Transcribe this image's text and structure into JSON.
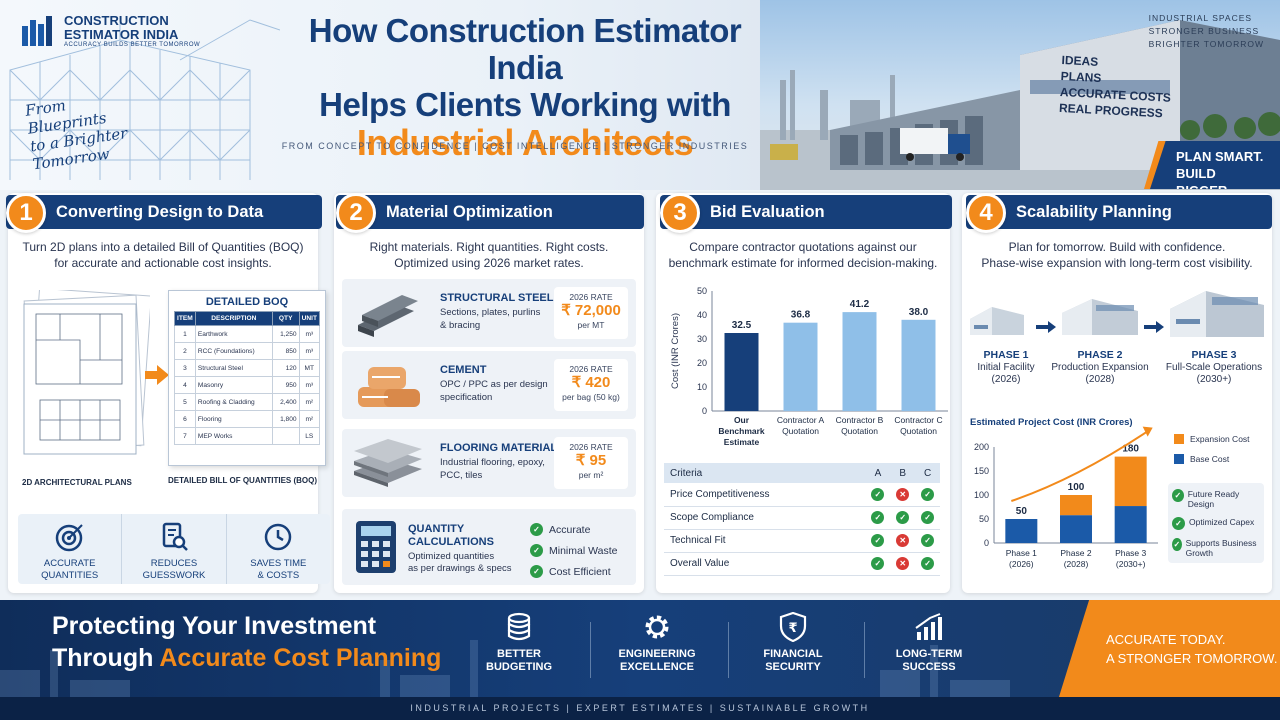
{
  "header": {
    "logo": {
      "line1": "CONSTRUCTION",
      "line2": "ESTIMATOR INDIA",
      "tagline": "ACCURACY BUILDS BETTER TOMORROW"
    },
    "script_tagline": [
      "From",
      "Blueprints",
      "to a Brighter",
      "Tomorrow"
    ],
    "title_line1": "How Construction Estimator India",
    "title_line2": "Helps Clients Working with",
    "title_line3": "Industrial Architects",
    "subtitle": "FROM CONCEPT TO CONFIDENCE  |  COST INTELLIGENCE  |  STRONGER INDUSTRIES",
    "top_right": [
      "INDUSTRIAL SPACES",
      "STRONGER BUSINESS",
      "BRIGHTER TOMORROW"
    ],
    "building_text": [
      "IDEAS",
      "PLANS",
      "ACCURATE COSTS",
      "REAL PROGRESS"
    ],
    "plan_smart": [
      "PLAN SMART.",
      "BUILD BIGGER."
    ]
  },
  "card1": {
    "num": "1",
    "title": "Converting Design to Data",
    "sub": [
      "Turn 2D plans into a detailed Bill of Quantities (BOQ)",
      "for accurate and actionable cost insights."
    ],
    "boq_title": "DETAILED BOQ",
    "boq_headers": [
      "ITEM",
      "DESCRIPTION",
      "QTY",
      "UNIT"
    ],
    "boq_rows": [
      [
        "1",
        "Earthwork",
        "1,250",
        "m³"
      ],
      [
        "2",
        "RCC (Foundations)",
        "850",
        "m³"
      ],
      [
        "3",
        "Structural Steel",
        "120",
        "MT"
      ],
      [
        "4",
        "Masonry",
        "950",
        "m³"
      ],
      [
        "5",
        "Roofing & Cladding",
        "2,400",
        "m²"
      ],
      [
        "6",
        "Flooring",
        "1,800",
        "m²"
      ],
      [
        "7",
        "MEP Works",
        "",
        "LS"
      ]
    ],
    "caption_left": "2D ARCHITECTURAL PLANS",
    "caption_right": "DETAILED BILL OF QUANTITIES (BOQ)",
    "features": [
      {
        "icon": "target-icon",
        "l1": "ACCURATE",
        "l2": "QUANTITIES"
      },
      {
        "icon": "document-search-icon",
        "l1": "REDUCES",
        "l2": "GUESSWORK"
      },
      {
        "icon": "clock-icon",
        "l1": "SAVES TIME",
        "l2": "& COSTS"
      }
    ]
  },
  "card2": {
    "num": "2",
    "title": "Material Optimization",
    "sub": [
      "Right materials. Right quantities. Right costs.",
      "Optimized using 2026 market rates."
    ],
    "materials": [
      {
        "name": "STRUCTURAL STEEL",
        "desc1": "Sections, plates, purlins",
        "desc2": "& bracing",
        "rate_label": "2026 RATE",
        "rate": "₹ 72,000",
        "unit": "per MT"
      },
      {
        "name": "CEMENT",
        "desc1": "OPC / PPC as per design",
        "desc2": "specification",
        "rate_label": "2026 RATE",
        "rate": "₹ 420",
        "unit": "per bag (50 kg)"
      },
      {
        "name": "FLOORING MATERIALS",
        "desc1": "Industrial flooring, epoxy,",
        "desc2": "PCC, tiles",
        "rate_label": "2026 RATE",
        "rate": "₹ 95",
        "unit": "per m²"
      }
    ],
    "qc": {
      "name1": "QUANTITY",
      "name2": "CALCULATIONS",
      "desc1": "Optimized quantities",
      "desc2": "as per drawings & specs",
      "checks": [
        "Accurate",
        "Minimal Waste",
        "Cost Efficient"
      ]
    }
  },
  "card3": {
    "num": "3",
    "title": "Bid Evaluation",
    "sub": [
      "Compare contractor quotations against our",
      "benchmark estimate for informed decision-making."
    ],
    "chart_data": {
      "type": "bar",
      "ylabel": "Cost (INR Crores)",
      "ylim": [
        0,
        50
      ],
      "yticks": [
        0,
        10,
        20,
        30,
        40,
        50
      ],
      "categories": [
        [
          "Our",
          "Benchmark",
          "Estimate"
        ],
        [
          "Contractor A",
          "Quotation"
        ],
        [
          "Contractor B",
          "Quotation"
        ],
        [
          "Contractor C",
          "Quotation"
        ]
      ],
      "values": [
        32.5,
        36.8,
        41.2,
        38.0
      ],
      "value_labels": [
        "32.5",
        "36.8",
        "41.2",
        "38.0"
      ],
      "colors": [
        "#163f7a",
        "#8fbfe8",
        "#8fbfe8",
        "#8fbfe8"
      ]
    },
    "criteria_headers": [
      "Criteria",
      "A",
      "B",
      "C"
    ],
    "criteria": [
      {
        "name": "Price Competitiveness",
        "vals": [
          true,
          false,
          true
        ]
      },
      {
        "name": "Scope Compliance",
        "vals": [
          true,
          true,
          true
        ]
      },
      {
        "name": "Technical Fit",
        "vals": [
          true,
          false,
          true
        ]
      },
      {
        "name": "Overall Value",
        "vals": [
          true,
          false,
          true
        ]
      }
    ]
  },
  "card4": {
    "num": "4",
    "title": "Scalability Planning",
    "sub": [
      "Plan for tomorrow. Build with confidence.",
      "Phase-wise expansion with long-term cost visibility."
    ],
    "phases": [
      {
        "name": "PHASE 1",
        "desc": "Initial Facility",
        "year": "(2026)"
      },
      {
        "name": "PHASE 2",
        "desc": "Production Expansion",
        "year": "(2028)"
      },
      {
        "name": "PHASE 3",
        "desc": "Full-Scale Operations",
        "year": "(2030+)"
      }
    ],
    "chart_data": {
      "type": "bar",
      "title": "Estimated Project Cost (INR Crores)",
      "ylim": [
        0,
        200
      ],
      "yticks": [
        0,
        50,
        100,
        150,
        200
      ],
      "categories": [
        [
          "Phase 1",
          "(2026)"
        ],
        [
          "Phase 2",
          "(2028)"
        ],
        [
          "Phase 3",
          "(2030+)"
        ]
      ],
      "series": [
        {
          "name": "Base Cost",
          "values": [
            50,
            58,
            77
          ]
        },
        {
          "name": "Expansion Cost",
          "values": [
            0,
            42,
            103
          ]
        }
      ],
      "totals": [
        "50",
        "100",
        "180"
      ],
      "colors": {
        "Base Cost": "#1b5aa8",
        "Expansion Cost": "#f28a1b"
      }
    },
    "legend": [
      "Expansion Cost",
      "Base Cost"
    ],
    "features": [
      "Future Ready Design",
      "Optimized Capex",
      "Supports Business Growth"
    ]
  },
  "footer": {
    "headline1": "Protecting Your Investment",
    "headline2a": "Through ",
    "headline2b": "Accurate Cost Planning",
    "items": [
      {
        "icon": "coins-icon",
        "l1": "BETTER",
        "l2": "BUDGETING"
      },
      {
        "icon": "gear-icon",
        "l1": "ENGINEERING",
        "l2": "EXCELLENCE"
      },
      {
        "icon": "shield-rupee-icon",
        "l1": "FINANCIAL",
        "l2": "SECURITY"
      },
      {
        "icon": "growth-chart-icon",
        "l1": "LONG-TERM",
        "l2": "SUCCESS"
      }
    ],
    "cta": [
      "ACCURATE TODAY.",
      "A STRONGER TOMORROW."
    ],
    "bottom": "INDUSTRIAL PROJECTS   |   EXPERT ESTIMATES   |   SUSTAINABLE GROWTH"
  }
}
